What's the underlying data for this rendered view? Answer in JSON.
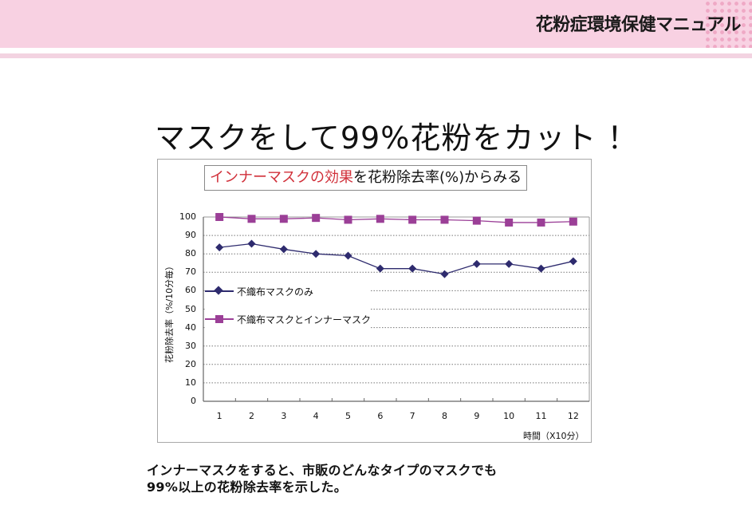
{
  "header": {
    "title": "花粉症環境保健マニュアル"
  },
  "main_title": "マスクをして99%花粉をカット ！",
  "chart": {
    "title_red": "インナーマスクの効果",
    "title_black": "を花粉除去率(%)からみる",
    "ylabel": "花粉除去率（%/10分毎）",
    "xlabel": "時間（X10分）",
    "legend": [
      {
        "label": "不織布マスクのみ",
        "marker": "diamond",
        "color": "#2e2b6e"
      },
      {
        "label": "不織布マスクとインナーマスク",
        "marker": "square",
        "color": "#9b3f97"
      }
    ]
  },
  "chart_data": {
    "type": "line",
    "title": "インナーマスクの効果を花粉除去率(%)からみる",
    "xlabel": "時間（X10分）",
    "ylabel": "花粉除去率（%/10分毎）",
    "x": [
      1,
      2,
      3,
      4,
      5,
      6,
      7,
      8,
      9,
      10,
      11,
      12
    ],
    "categories": [
      "1",
      "2",
      "3",
      "4",
      "5",
      "6",
      "7",
      "8",
      "9",
      "10",
      "11",
      "12"
    ],
    "yticks": [
      0,
      10,
      20,
      30,
      40,
      50,
      60,
      70,
      80,
      90,
      100
    ],
    "ylim": [
      0,
      100
    ],
    "grid": "horizontal dotted",
    "legend_position": "inside left, middle",
    "series": [
      {
        "name": "不織布マスクのみ",
        "marker": "diamond",
        "color": "#2e2b6e",
        "values": [
          83.5,
          85.5,
          82.5,
          80,
          79,
          72,
          72,
          69,
          74.5,
          74.5,
          72,
          76
        ]
      },
      {
        "name": "不織布マスクとインナーマスク",
        "marker": "square",
        "color": "#9b3f97",
        "values": [
          100,
          99,
          99,
          99.5,
          98.5,
          99,
          98.5,
          98.5,
          98,
          97,
          97,
          97.5
        ]
      }
    ]
  },
  "note": {
    "line1": "インナーマスクをすると、市販のどんなタイプのマスクでも",
    "line2": "99%以上の花粉除去率を示した。"
  }
}
